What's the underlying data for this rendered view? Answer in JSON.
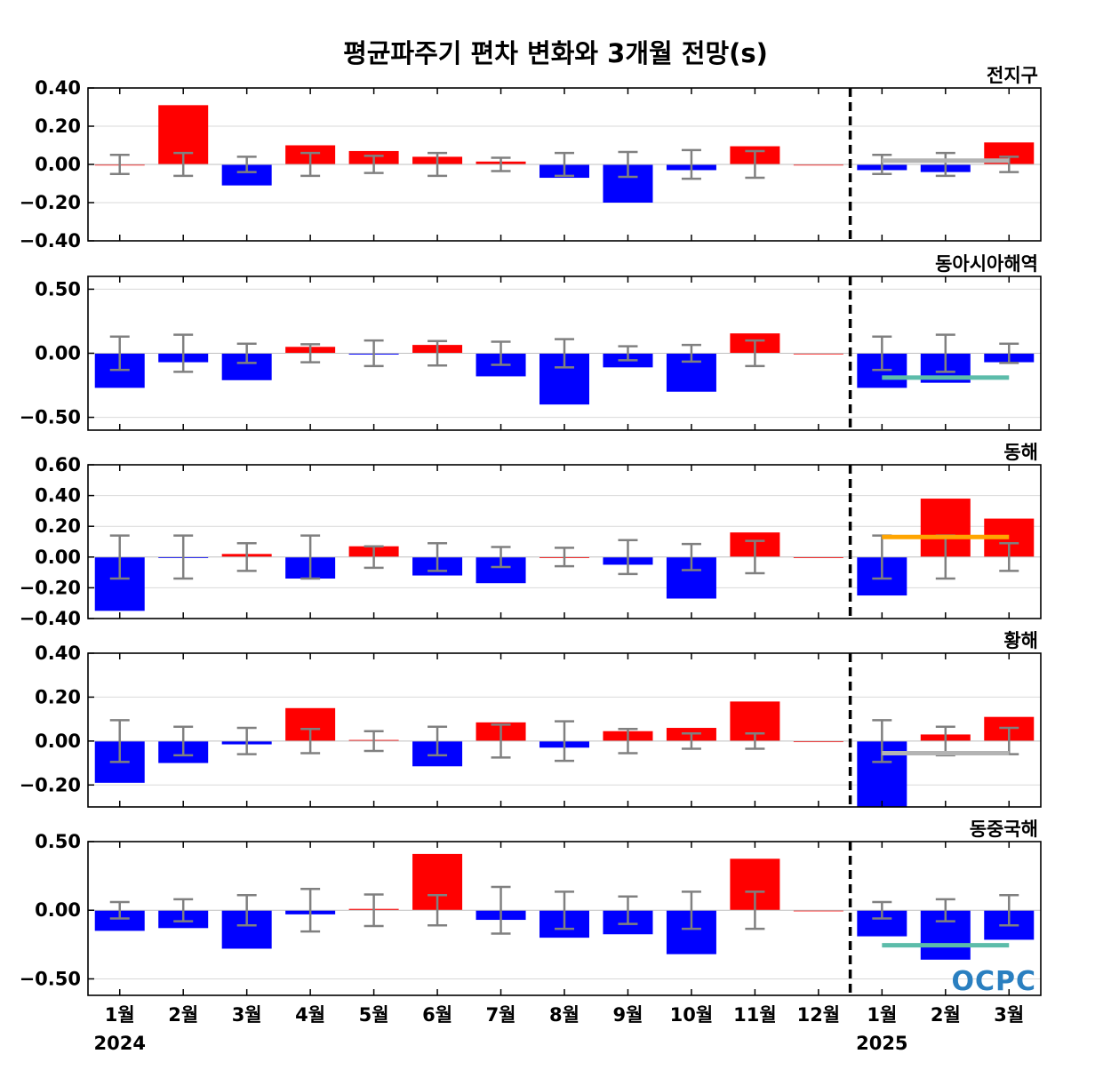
{
  "chart_data": {
    "type": "bar",
    "title": "평균파주기 편차 변화와 3개월 전망(s)",
    "categories": [
      "1월",
      "2월",
      "3월",
      "4월",
      "5월",
      "6월",
      "7월",
      "8월",
      "9월",
      "10월",
      "11월",
      "12월",
      "1월",
      "2월",
      "3월"
    ],
    "year_labels": [
      {
        "index": 0,
        "label": "2024"
      },
      {
        "index": 12,
        "label": "2025"
      }
    ],
    "forecast_divider_after_index": 11,
    "logo_text": "OCPC",
    "colors": {
      "positive": "#ff0000",
      "negative": "#0000ff",
      "errorbar": "#808080",
      "divider": "#000000"
    },
    "panels": [
      {
        "name": "전지구",
        "ylim": [
          -0.4,
          0.4
        ],
        "yticks": [
          -0.4,
          -0.2,
          0.0,
          0.2,
          0.4
        ],
        "tick_labels": [
          "−0.40",
          "−0.20",
          "0.00",
          "0.20",
          "0.40"
        ],
        "values": [
          0.0,
          0.31,
          -0.11,
          0.1,
          0.07,
          0.04,
          0.015,
          -0.07,
          -0.2,
          -0.03,
          0.095,
          0.0,
          -0.03,
          -0.04,
          0.115
        ],
        "errors": [
          0.05,
          0.06,
          0.04,
          0.06,
          0.045,
          0.06,
          0.035,
          0.06,
          0.065,
          0.075,
          0.07,
          0.0,
          0.05,
          0.06,
          0.04
        ],
        "forecast": {
          "value": 0.02,
          "color": "#b3b3b3"
        }
      },
      {
        "name": "동아시아해역",
        "ylim": [
          -0.6,
          0.6
        ],
        "yticks": [
          -0.5,
          0.0,
          0.5
        ],
        "tick_labels": [
          "−0.50",
          "0.00",
          "0.50"
        ],
        "values": [
          -0.27,
          -0.07,
          -0.21,
          0.05,
          -0.01,
          0.065,
          -0.18,
          -0.4,
          -0.11,
          -0.3,
          0.155,
          0.0,
          -0.27,
          -0.23,
          -0.07
        ],
        "errors": [
          0.13,
          0.145,
          0.075,
          0.07,
          0.1,
          0.095,
          0.09,
          0.11,
          0.055,
          0.065,
          0.1,
          0.0,
          0.13,
          0.145,
          0.075
        ],
        "forecast": {
          "value": -0.19,
          "color": "#5cbcaa"
        }
      },
      {
        "name": "동해",
        "ylim": [
          -0.4,
          0.6
        ],
        "yticks": [
          -0.4,
          -0.2,
          0.0,
          0.2,
          0.4,
          0.6
        ],
        "tick_labels": [
          "−0.40",
          "−0.20",
          "0.00",
          "0.20",
          "0.40",
          "0.60"
        ],
        "values": [
          -0.35,
          -0.005,
          0.02,
          -0.14,
          0.07,
          -0.12,
          -0.17,
          0.0,
          -0.05,
          -0.27,
          0.16,
          0.0,
          -0.25,
          0.38,
          0.25
        ],
        "errors": [
          0.14,
          0.14,
          0.09,
          0.14,
          0.07,
          0.09,
          0.065,
          0.06,
          0.11,
          0.085,
          0.105,
          0.0,
          0.14,
          0.14,
          0.09
        ],
        "forecast": {
          "value": 0.13,
          "color": "#ffa500"
        }
      },
      {
        "name": "황해",
        "ylim": [
          -0.3,
          0.4
        ],
        "yticks": [
          -0.2,
          0.0,
          0.2,
          0.4
        ],
        "tick_labels": [
          "−0.20",
          "0.00",
          "0.20",
          "0.40"
        ],
        "values": [
          -0.19,
          -0.1,
          -0.015,
          0.15,
          0.005,
          -0.115,
          0.085,
          -0.03,
          0.045,
          0.06,
          0.18,
          0.0,
          -0.3,
          0.03,
          0.11
        ],
        "errors": [
          0.095,
          0.065,
          0.06,
          0.055,
          0.045,
          0.065,
          0.075,
          0.09,
          0.055,
          0.035,
          0.035,
          0.0,
          0.095,
          0.065,
          0.06
        ],
        "forecast": {
          "value": -0.055,
          "color": "#b3b3b3"
        }
      },
      {
        "name": "동중국해",
        "ylim": [
          -0.62,
          0.5
        ],
        "yticks": [
          -0.5,
          0.0,
          0.5
        ],
        "tick_labels": [
          "−0.50",
          "0.00",
          "0.50"
        ],
        "values": [
          -0.15,
          -0.13,
          -0.28,
          -0.03,
          0.01,
          0.41,
          -0.07,
          -0.2,
          -0.175,
          -0.32,
          0.375,
          0.0,
          -0.19,
          -0.36,
          -0.215
        ],
        "errors": [
          0.06,
          0.08,
          0.11,
          0.155,
          0.115,
          0.11,
          0.17,
          0.135,
          0.1,
          0.135,
          0.135,
          0.0,
          0.06,
          0.08,
          0.11
        ],
        "forecast": {
          "value": -0.255,
          "color": "#5cbcaa"
        }
      }
    ]
  }
}
